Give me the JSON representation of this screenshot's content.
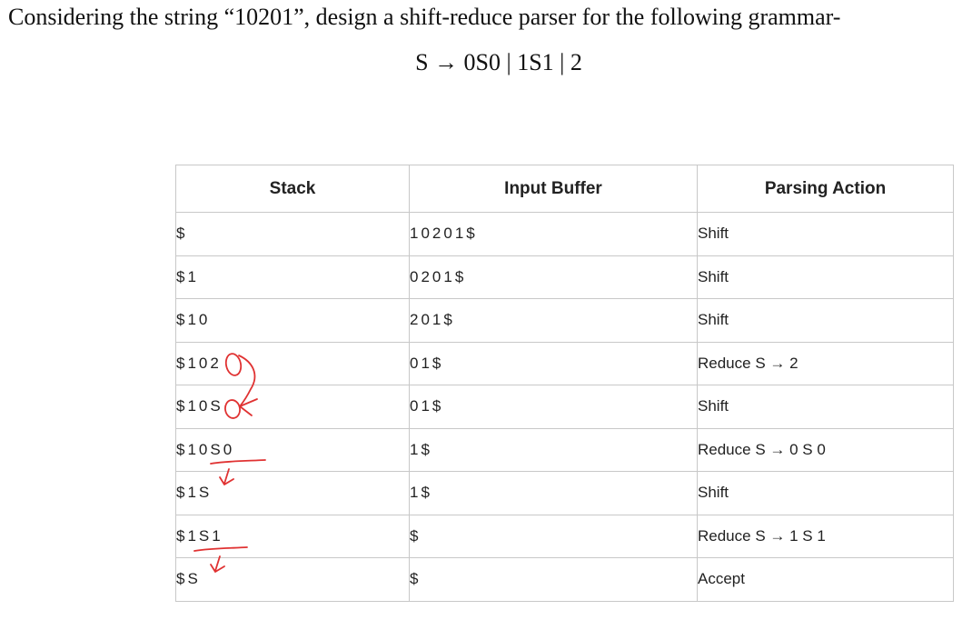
{
  "question": {
    "text": "Considering the string “10201”, design a shift-reduce parser for the following grammar-",
    "grammar": "S → 0S0 | 1S1 | 2"
  },
  "table": {
    "headers": [
      "Stack",
      "Input Buffer",
      "Parsing Action"
    ],
    "rows": [
      {
        "stack": "$",
        "input": "10201$",
        "action": "Shift"
      },
      {
        "stack": "$1",
        "input": "0201$",
        "action": "Shift"
      },
      {
        "stack": "$10",
        "input": "201$",
        "action": "Shift"
      },
      {
        "stack": "$102",
        "input": "01$",
        "action": "Reduce S → 2"
      },
      {
        "stack": "$10S",
        "input": "01$",
        "action": "Shift"
      },
      {
        "stack": "$10S0",
        "input": "1$",
        "action": "Reduce S → 0 S 0"
      },
      {
        "stack": "$1S",
        "input": "1$",
        "action": "Shift"
      },
      {
        "stack": "$1S1",
        "input": "$",
        "action": "Reduce S → 1 S 1"
      },
      {
        "stack": "$S",
        "input": "$",
        "action": "Accept"
      }
    ]
  },
  "annotation_color": "#e03232"
}
